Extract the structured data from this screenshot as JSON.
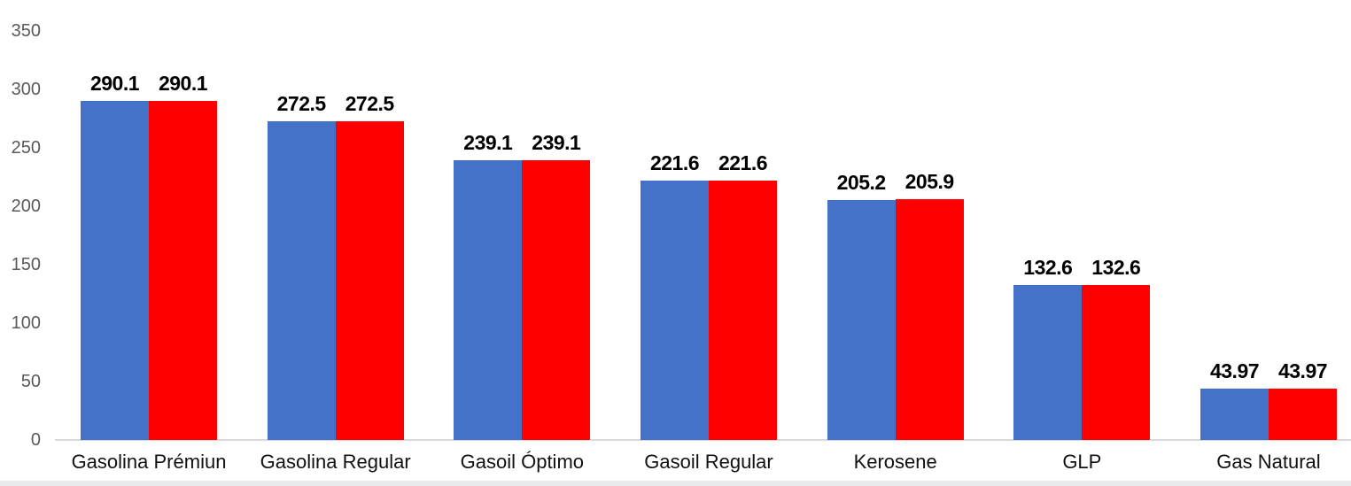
{
  "chart_data": {
    "type": "bar",
    "title": "",
    "xlabel": "",
    "ylabel": "",
    "categories": [
      "Gasolina Prémiun",
      "Gasolina Regular",
      "Gasoil Óptimo",
      "Gasoil Regular",
      "Kerosene",
      "GLP",
      "Gas Natural"
    ],
    "series": [
      {
        "name": "blue",
        "color": "#4472C8",
        "values": [
          290.1,
          272.5,
          239.1,
          221.6,
          205.2,
          132.6,
          43.97
        ],
        "labels": [
          "290.1",
          "272.5",
          "239.1",
          "221.6",
          "205.2",
          "132.6",
          "43.97"
        ]
      },
      {
        "name": "red",
        "color": "#FF0000",
        "values": [
          290.1,
          272.5,
          239.1,
          221.6,
          205.9,
          132.6,
          43.97
        ],
        "labels": [
          "290.1",
          "272.5",
          "239.1",
          "221.6",
          "205.9",
          "132.6",
          "43.97"
        ]
      }
    ],
    "ylim": [
      0,
      350
    ],
    "yticks": [
      "0",
      "50",
      "100",
      "150",
      "200",
      "250",
      "300",
      "350"
    ],
    "grid": false,
    "legend_position": "none"
  },
  "colors": {
    "axis_line": "#D9D9D9",
    "tick_label": "#595959",
    "data_label": "#000000",
    "category_label": "#111111",
    "bottom_strip": "#E7EBEE"
  }
}
